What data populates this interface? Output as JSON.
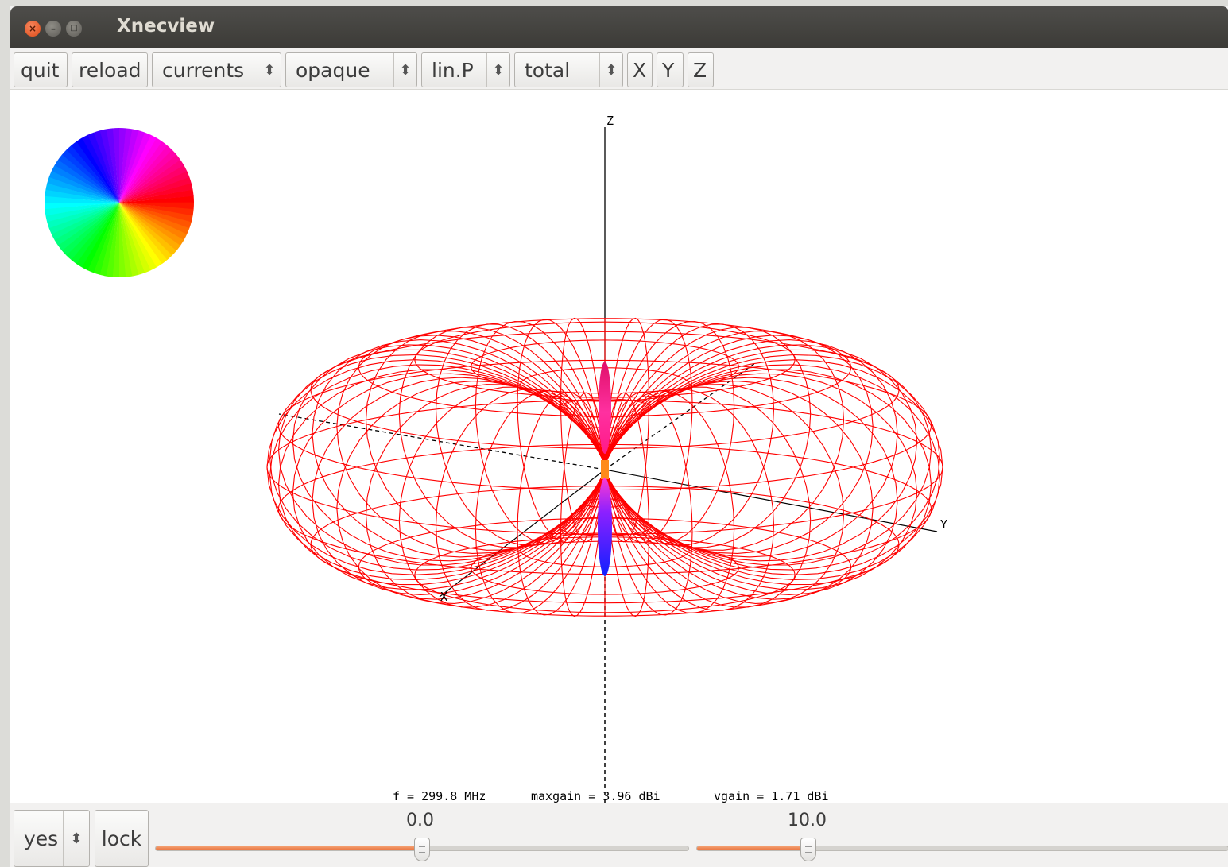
{
  "window": {
    "title": "Xnecview"
  },
  "toolbar": {
    "quit": "quit",
    "reload": "reload",
    "display_mode": "currents",
    "surface_mode": "opaque",
    "polarization": "lin.P",
    "gain_type": "total",
    "view_x": "X",
    "view_y": "Y",
    "view_z": "Z"
  },
  "plot": {
    "axis_labels": {
      "x": "X",
      "y": "Y",
      "z": "Z"
    },
    "status": {
      "frequency": "f = 299.8 MHz",
      "maxgain": "maxgain = 3.96 dBi",
      "vgain": "vgain = 1.71 dBi"
    },
    "colors": {
      "pattern": "#ff0000",
      "axes": "#000000",
      "background": "#ffffff"
    }
  },
  "bottom": {
    "toggle": "yes",
    "lock": "lock",
    "slider1": {
      "value_label": "0.0",
      "fraction": 0.5
    },
    "slider2": {
      "value_label": "10.0",
      "fraction": 0.21
    }
  },
  "icons": [
    "close-icon",
    "minimize-icon",
    "maximize-icon",
    "spinner-arrows-icon"
  ]
}
